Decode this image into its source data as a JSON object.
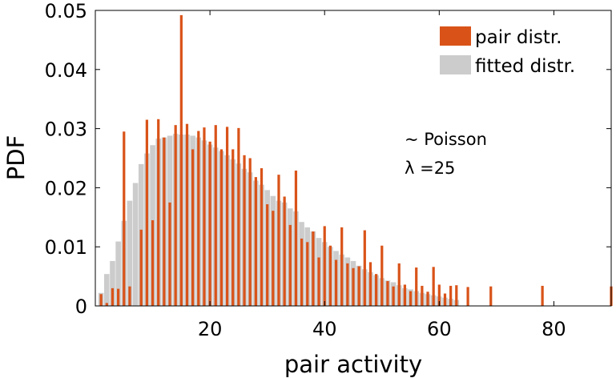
{
  "chart_data": {
    "type": "bar",
    "title": "",
    "xlabel": "pair activity",
    "ylabel": "PDF",
    "xlim": [
      0,
      90
    ],
    "ylim": [
      0,
      0.05
    ],
    "xticks": [
      20,
      40,
      60,
      80
    ],
    "xtick_labels": [
      "20",
      "40",
      "60",
      "80"
    ],
    "yticks": [
      0,
      0.01,
      0.02,
      0.03,
      0.04,
      0.05
    ],
    "ytick_labels": [
      "0",
      "0.01",
      "0.02",
      "0.03",
      "0.04",
      "0.05"
    ],
    "grid": false,
    "legend_position": "top-right",
    "annotation": {
      "line1": "~ Poisson",
      "line2": "λ =25"
    },
    "series": [
      {
        "name": "pair distr.",
        "color": "#d95319",
        "x": [
          1,
          2,
          3,
          4,
          5,
          6,
          7,
          8,
          9,
          10,
          11,
          12,
          13,
          14,
          15,
          16,
          17,
          18,
          19,
          20,
          21,
          22,
          23,
          24,
          25,
          26,
          27,
          28,
          29,
          30,
          31,
          32,
          33,
          34,
          35,
          36,
          37,
          38,
          39,
          40,
          41,
          42,
          43,
          44,
          45,
          46,
          47,
          48,
          49,
          50,
          51,
          52,
          53,
          54,
          55,
          56,
          57,
          58,
          59,
          60,
          61,
          62,
          63,
          65,
          69,
          78,
          90
        ],
        "values": [
          0.002,
          0.0005,
          0.003,
          0.0029,
          0.0295,
          0.0033,
          0.0,
          0.0129,
          0.0315,
          0.0145,
          0.0316,
          0.0285,
          0.0175,
          0.0306,
          0.0492,
          0.0308,
          0.0265,
          0.0296,
          0.0302,
          0.0278,
          0.0306,
          0.0265,
          0.0303,
          0.0265,
          0.0301,
          0.0255,
          0.025,
          0.0218,
          0.0233,
          0.0172,
          0.0161,
          0.0222,
          0.0185,
          0.0137,
          0.0229,
          0.0114,
          0.0108,
          0.0126,
          0.0082,
          0.0135,
          0.0102,
          0.0078,
          0.0133,
          0.0072,
          0.0064,
          0.0067,
          0.0128,
          0.0074,
          0.0054,
          0.0102,
          0.0042,
          0.0033,
          0.0072,
          0.0036,
          0.0025,
          0.0065,
          0.0034,
          0.0024,
          0.0066,
          0.0036,
          0.0021,
          0.0034,
          0.0035,
          0.0032,
          0.0033,
          0.0034,
          0.0033
        ]
      },
      {
        "name": "fitted distr.",
        "color": "#cccccc",
        "x": [
          1,
          2,
          3,
          4,
          5,
          6,
          7,
          8,
          9,
          10,
          11,
          12,
          13,
          14,
          15,
          16,
          17,
          18,
          19,
          20,
          21,
          22,
          23,
          24,
          25,
          26,
          27,
          28,
          29,
          30,
          31,
          32,
          33,
          34,
          35,
          36,
          37,
          38,
          39,
          40,
          41,
          42,
          43,
          44,
          45,
          46,
          47,
          48,
          49,
          50,
          51,
          52,
          53,
          54,
          55,
          56,
          57,
          58,
          59,
          60,
          61,
          62,
          63
        ],
        "values": [
          0.0022,
          0.0054,
          0.0076,
          0.0109,
          0.0144,
          0.0178,
          0.0208,
          0.024,
          0.0258,
          0.0272,
          0.0283,
          0.0285,
          0.0288,
          0.0291,
          0.029,
          0.029,
          0.0288,
          0.0285,
          0.028,
          0.0273,
          0.0268,
          0.0262,
          0.0255,
          0.0248,
          0.0241,
          0.0232,
          0.0226,
          0.0212,
          0.0205,
          0.0196,
          0.0186,
          0.0178,
          0.0175,
          0.0165,
          0.016,
          0.0142,
          0.0133,
          0.0126,
          0.0115,
          0.0108,
          0.01,
          0.0093,
          0.0087,
          0.0082,
          0.0076,
          0.0068,
          0.0062,
          0.0057,
          0.0052,
          0.0047,
          0.0043,
          0.004,
          0.0035,
          0.003,
          0.0028,
          0.0025,
          0.0022,
          0.002,
          0.0018,
          0.0016,
          0.0014,
          0.0012,
          0.001
        ]
      }
    ]
  }
}
